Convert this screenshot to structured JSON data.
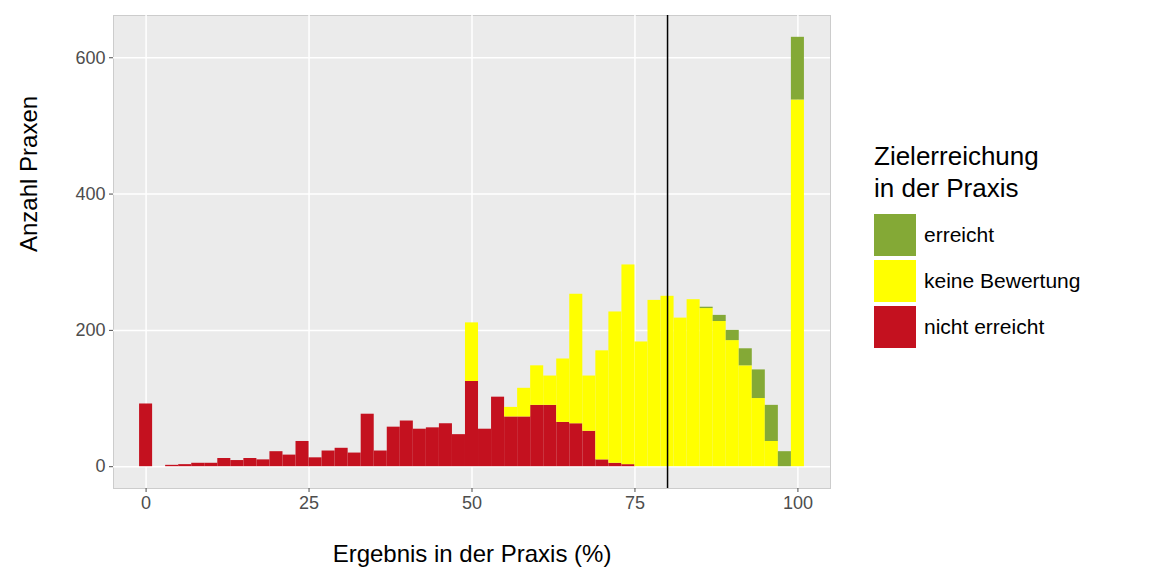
{
  "chart_data": {
    "type": "histogram",
    "x_label": "Ergebnis in der Praxis (%)",
    "y_label": "Anzahl Praxen",
    "legend_title": "Zielerreichung\nin der Praxis",
    "bins": [
      -1,
      1,
      3,
      5,
      7,
      9,
      11,
      13,
      15,
      17,
      19,
      21,
      23,
      25,
      27,
      29,
      31,
      33,
      35,
      37,
      39,
      41,
      43,
      45,
      47,
      49,
      51,
      53,
      55,
      57,
      59,
      61,
      63,
      65,
      67,
      69,
      71,
      73,
      75,
      77,
      79,
      81,
      83,
      85,
      87,
      89,
      91,
      93,
      95,
      97,
      99,
      101
    ],
    "series": [
      {
        "name": "erreicht",
        "color": "#84a936",
        "values": [
          0,
          0,
          0,
          0,
          0,
          0,
          0,
          0,
          0,
          0,
          0,
          0,
          0,
          0,
          0,
          0,
          0,
          0,
          0,
          0,
          0,
          0,
          0,
          0,
          0,
          0,
          0,
          0,
          0,
          0,
          0,
          0,
          0,
          0,
          0,
          0,
          0,
          0,
          0,
          0,
          0,
          0,
          0,
          2,
          9,
          15,
          25,
          42,
          53,
          22,
          92
        ]
      },
      {
        "name": "keine Bewertung",
        "color": "#ffff00",
        "values": [
          0,
          0,
          0,
          0,
          0,
          0,
          0,
          0,
          0,
          0,
          0,
          0,
          0,
          0,
          0,
          0,
          0,
          0,
          0,
          0,
          0,
          0,
          0,
          0,
          0,
          86,
          0,
          0,
          14,
          42,
          58,
          43,
          93,
          190,
          81,
          160,
          222,
          293,
          183,
          244,
          250,
          218,
          245,
          232,
          213,
          185,
          148,
          100,
          37,
          0,
          538
        ]
      },
      {
        "name": "nicht erreicht",
        "color": "#c4111f",
        "values": [
          92,
          0,
          2,
          3,
          5,
          5,
          12,
          9,
          12,
          10,
          22,
          17,
          37,
          13,
          23,
          27,
          20,
          77,
          23,
          58,
          67,
          55,
          57,
          63,
          47,
          125,
          55,
          102,
          73,
          73,
          90,
          90,
          65,
          63,
          52,
          10,
          5,
          3,
          0,
          0,
          0,
          0,
          0,
          0,
          0,
          0,
          0,
          0,
          0,
          0,
          0
        ]
      }
    ],
    "stacked": true,
    "vlines": [
      80
    ],
    "xlim": [
      -5,
      105
    ],
    "xticks": [
      0,
      25,
      50,
      75,
      100
    ],
    "ylim": [
      -32,
      662
    ],
    "yticks": [
      0,
      200,
      400,
      600
    ],
    "grid": true,
    "legend": "right"
  }
}
